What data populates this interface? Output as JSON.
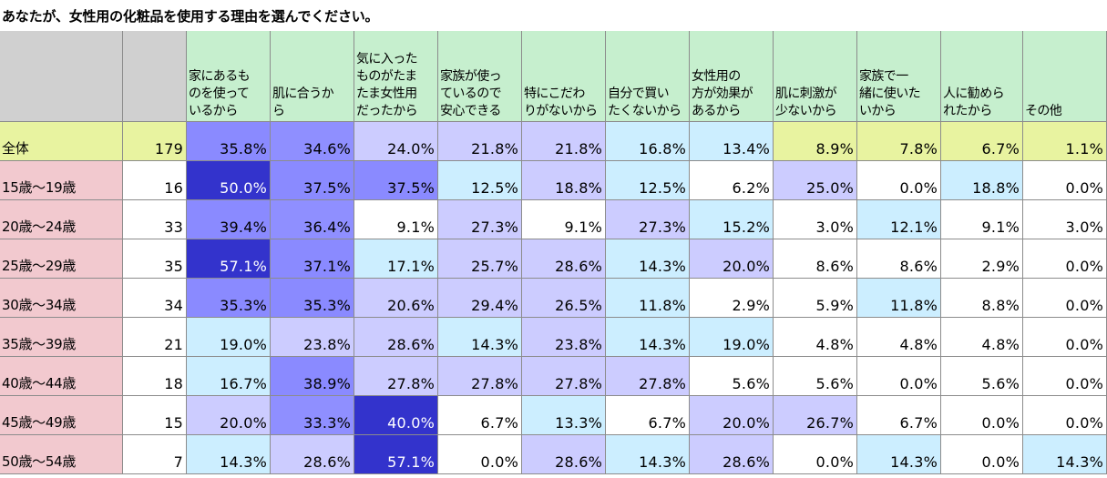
{
  "title": "あなたが、女性用の化粧品を使用する理由を選んでください。",
  "colors": {
    "header_blank": "#d0d0d0",
    "header_green": "#c6efce",
    "total_row": "#e8f3a0",
    "age_label": "#f2c9cf",
    "white": "#ffffff"
  },
  "chart_data": {
    "type": "table",
    "title": "あなたが、女性用の化粧品を使用する理由を選んでください。",
    "columns": [
      "家にあるも\nのを使って\nいるから",
      "肌に合うか\nら",
      "気に入った\nものがたま\nたま女性用\nだったから",
      "家族が使っ\nているので\n安心できる",
      "特にこだわ\nりがないから",
      "自分で買い\nたくないから",
      "女性用の\n方が効果が\nあるから",
      "肌に刺激が\n少ないから",
      "家族で一\n緒に使いた\nいから",
      "人に勧めら\nれたから",
      "その他"
    ],
    "rows": [
      {
        "label": "全体",
        "n": "179",
        "values": [
          "35.8%",
          "34.6%",
          "24.0%",
          "21.8%",
          "21.8%",
          "16.8%",
          "13.4%",
          "8.9%",
          "7.8%",
          "6.7%",
          "1.1%"
        ],
        "colors": [
          "#8a8aff",
          "#8f8fff",
          "#ccccff",
          "#ccccff",
          "#ccccff",
          "#cceeff",
          "#cceeff",
          "#e8f3a0",
          "#e8f3a0",
          "#e8f3a0",
          "#e8f3a0"
        ]
      },
      {
        "label": "15歳～19歳",
        "n": "16",
        "values": [
          "50.0%",
          "37.5%",
          "37.5%",
          "12.5%",
          "18.8%",
          "12.5%",
          "6.2%",
          "25.0%",
          "0.0%",
          "18.8%",
          "0.0%"
        ],
        "colors": [
          "#3333cc",
          "#8a8aff",
          "#8a8aff",
          "#cceeff",
          "#ccccff",
          "#cceeff",
          "#ffffff",
          "#ccccff",
          "#ffffff",
          "#cceeff",
          "#ffffff"
        ]
      },
      {
        "label": "20歳～24歳",
        "n": "33",
        "values": [
          "39.4%",
          "36.4%",
          "9.1%",
          "27.3%",
          "9.1%",
          "27.3%",
          "15.2%",
          "3.0%",
          "12.1%",
          "9.1%",
          "3.0%"
        ],
        "colors": [
          "#8a8aff",
          "#8f8fff",
          "#ffffff",
          "#ccccff",
          "#ffffff",
          "#ccccff",
          "#cceeff",
          "#ffffff",
          "#cceeff",
          "#ffffff",
          "#ffffff"
        ]
      },
      {
        "label": "25歳～29歳",
        "n": "35",
        "values": [
          "57.1%",
          "37.1%",
          "17.1%",
          "25.7%",
          "28.6%",
          "14.3%",
          "20.0%",
          "8.6%",
          "8.6%",
          "2.9%",
          "0.0%"
        ],
        "colors": [
          "#3333cc",
          "#8a8aff",
          "#cceeff",
          "#ccccff",
          "#ccccff",
          "#cceeff",
          "#ccccff",
          "#ffffff",
          "#ffffff",
          "#ffffff",
          "#ffffff"
        ]
      },
      {
        "label": "30歳～34歳",
        "n": "34",
        "values": [
          "35.3%",
          "35.3%",
          "20.6%",
          "29.4%",
          "26.5%",
          "11.8%",
          "2.9%",
          "5.9%",
          "11.8%",
          "8.8%",
          "0.0%"
        ],
        "colors": [
          "#8a8aff",
          "#8a8aff",
          "#ccccff",
          "#ccccff",
          "#ccccff",
          "#cceeff",
          "#ffffff",
          "#ffffff",
          "#cceeff",
          "#ffffff",
          "#ffffff"
        ]
      },
      {
        "label": "35歳～39歳",
        "n": "21",
        "values": [
          "19.0%",
          "23.8%",
          "28.6%",
          "14.3%",
          "23.8%",
          "14.3%",
          "19.0%",
          "4.8%",
          "4.8%",
          "4.8%",
          "0.0%"
        ],
        "colors": [
          "#cceeff",
          "#ccccff",
          "#ccccff",
          "#cceeff",
          "#ccccff",
          "#cceeff",
          "#cceeff",
          "#ffffff",
          "#ffffff",
          "#ffffff",
          "#ffffff"
        ]
      },
      {
        "label": "40歳～44歳",
        "n": "18",
        "values": [
          "16.7%",
          "38.9%",
          "27.8%",
          "27.8%",
          "27.8%",
          "27.8%",
          "5.6%",
          "5.6%",
          "0.0%",
          "5.6%",
          "0.0%"
        ],
        "colors": [
          "#cceeff",
          "#8a8aff",
          "#ccccff",
          "#ccccff",
          "#ccccff",
          "#ccccff",
          "#ffffff",
          "#ffffff",
          "#ffffff",
          "#ffffff",
          "#ffffff"
        ]
      },
      {
        "label": "45歳～49歳",
        "n": "15",
        "values": [
          "20.0%",
          "33.3%",
          "40.0%",
          "6.7%",
          "13.3%",
          "6.7%",
          "20.0%",
          "26.7%",
          "6.7%",
          "0.0%",
          "0.0%"
        ],
        "colors": [
          "#ccccff",
          "#8f8fff",
          "#3333cc",
          "#ffffff",
          "#cceeff",
          "#ffffff",
          "#ccccff",
          "#ccccff",
          "#ffffff",
          "#ffffff",
          "#ffffff"
        ]
      },
      {
        "label": "50歳～54歳",
        "n": "7",
        "values": [
          "14.3%",
          "28.6%",
          "57.1%",
          "0.0%",
          "28.6%",
          "14.3%",
          "28.6%",
          "0.0%",
          "14.3%",
          "0.0%",
          "14.3%"
        ],
        "colors": [
          "#cceeff",
          "#ccccff",
          "#3333cc",
          "#ffffff",
          "#ccccff",
          "#cceeff",
          "#ccccff",
          "#ffffff",
          "#cceeff",
          "#ffffff",
          "#cceeff"
        ]
      }
    ]
  }
}
